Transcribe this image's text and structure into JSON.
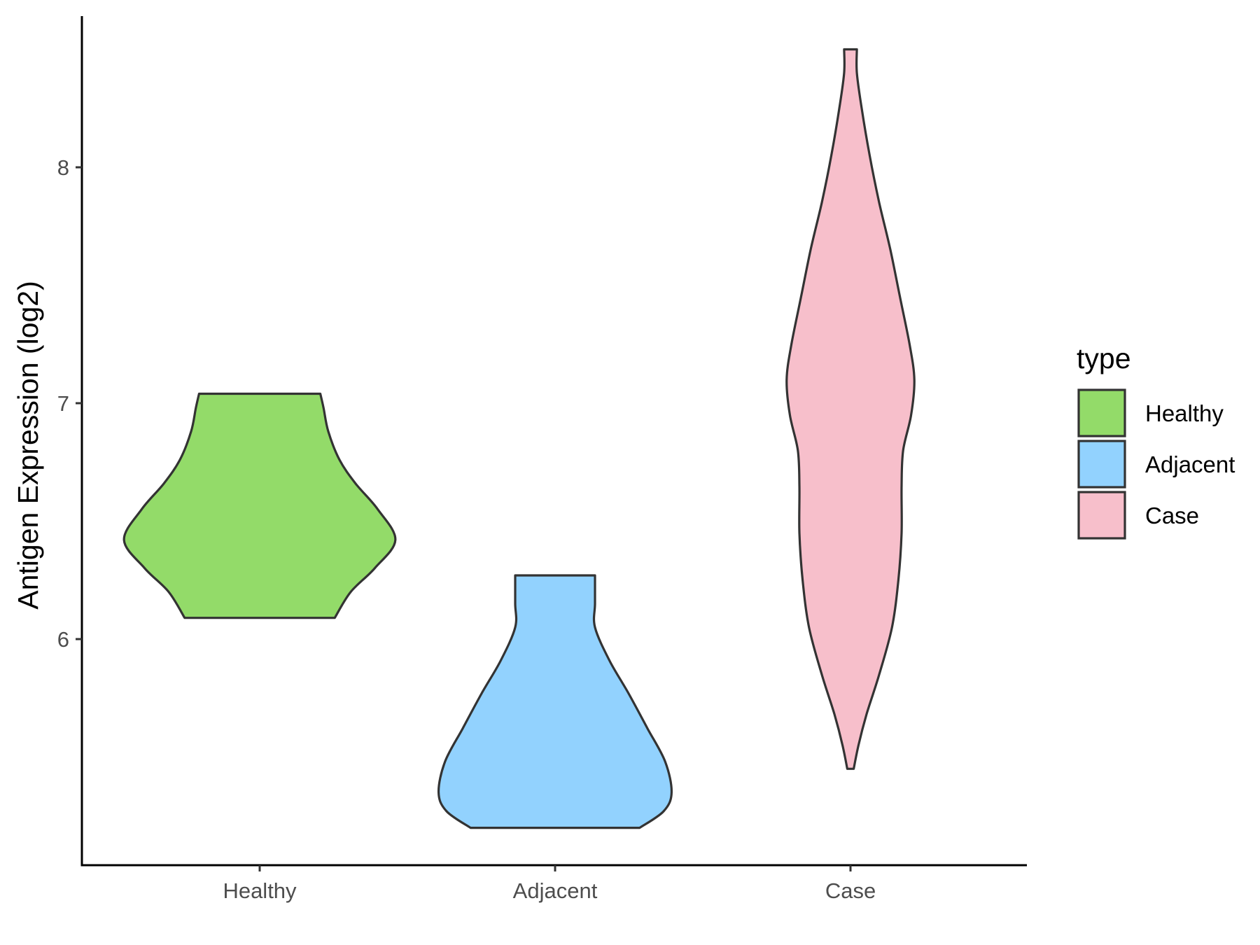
{
  "chart_data": {
    "type": "violin",
    "ylabel": "Antigen Expression (log2)",
    "xlabel": "",
    "categories": [
      "Healthy",
      "Adjacent",
      "Case"
    ],
    "yticks": [
      6,
      7,
      8
    ],
    "ylim": [
      5.04,
      8.64
    ],
    "grid": false,
    "legend": {
      "title": "type",
      "placement": "right",
      "entries": [
        {
          "label": "Healthy",
          "color": "#93DB69"
        },
        {
          "label": "Adjacent",
          "color": "#92D2FE"
        },
        {
          "label": "Case",
          "color": "#F7BFCB"
        }
      ]
    },
    "series": [
      {
        "category": "Healthy",
        "color": "#93DB69",
        "min": 6.09,
        "max": 7.04,
        "density_profile": [
          [
            6.09,
            0.47
          ],
          [
            6.2,
            0.57
          ],
          [
            6.3,
            0.72
          ],
          [
            6.42,
            0.85
          ],
          [
            6.55,
            0.74
          ],
          [
            6.66,
            0.6
          ],
          [
            6.76,
            0.5
          ],
          [
            6.88,
            0.43
          ],
          [
            6.98,
            0.4
          ],
          [
            7.04,
            0.38
          ]
        ]
      },
      {
        "category": "Adjacent",
        "color": "#92D2FE",
        "min": 5.2,
        "max": 6.27,
        "density_profile": [
          [
            5.2,
            0.53
          ],
          [
            5.27,
            0.68
          ],
          [
            5.35,
            0.73
          ],
          [
            5.48,
            0.69
          ],
          [
            5.62,
            0.58
          ],
          [
            5.77,
            0.46
          ],
          [
            5.91,
            0.34
          ],
          [
            6.05,
            0.25
          ],
          [
            6.15,
            0.25
          ],
          [
            6.27,
            0.25
          ]
        ]
      },
      {
        "category": "Case",
        "color": "#F7BFCB",
        "min": 5.45,
        "max": 8.5,
        "density_profile": [
          [
            5.45,
            0.02
          ],
          [
            5.55,
            0.05
          ],
          [
            5.68,
            0.1
          ],
          [
            5.85,
            0.18
          ],
          [
            6.05,
            0.26
          ],
          [
            6.25,
            0.3
          ],
          [
            6.45,
            0.32
          ],
          [
            6.65,
            0.32
          ],
          [
            6.8,
            0.33
          ],
          [
            6.95,
            0.38
          ],
          [
            7.1,
            0.4
          ],
          [
            7.25,
            0.37
          ],
          [
            7.45,
            0.31
          ],
          [
            7.65,
            0.25
          ],
          [
            7.85,
            0.18
          ],
          [
            8.05,
            0.12
          ],
          [
            8.25,
            0.07
          ],
          [
            8.4,
            0.04
          ],
          [
            8.5,
            0.04
          ]
        ]
      }
    ]
  }
}
